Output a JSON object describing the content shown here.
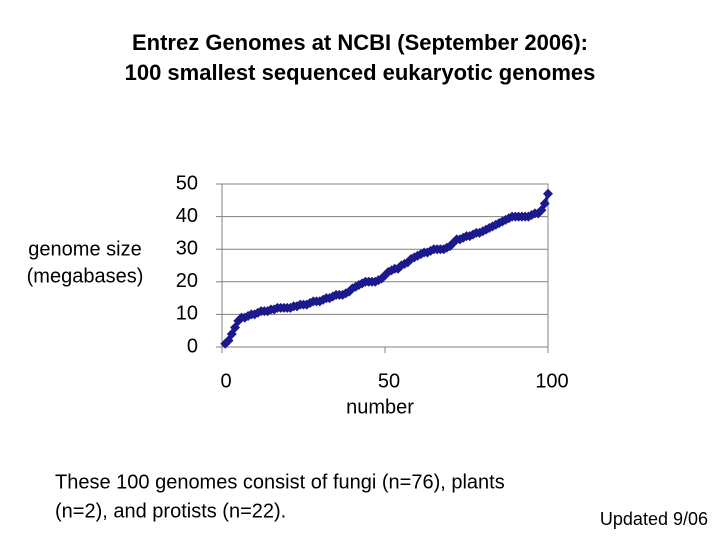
{
  "chart_data": {
    "type": "line",
    "title": [
      "Entrez Genomes at NCBI (September 2006):",
      "100 smallest sequenced eukaryotic genomes"
    ],
    "y_label": [
      "genome size",
      "(megabases)"
    ],
    "x_label": "number",
    "note": [
      "These 100 genomes consist of fungi (n=76), plants",
      "(n=2), and protists (n=22)."
    ],
    "footnote": "Updated 9/06",
    "xlim": [
      0,
      100
    ],
    "xticks": [
      0,
      50,
      100
    ],
    "ylim": [
      0,
      50
    ],
    "yticks": [
      0,
      10,
      20,
      30,
      40,
      50
    ],
    "grid": true,
    "color": "#1a1a8c",
    "x": [
      1,
      2,
      3,
      4,
      5,
      6,
      7,
      8,
      9,
      10,
      11,
      12,
      13,
      14,
      15,
      16,
      17,
      18,
      19,
      20,
      21,
      22,
      23,
      24,
      25,
      26,
      27,
      28,
      29,
      30,
      31,
      32,
      33,
      34,
      35,
      36,
      37,
      38,
      39,
      40,
      41,
      42,
      43,
      44,
      45,
      46,
      47,
      48,
      49,
      50,
      51,
      52,
      53,
      54,
      55,
      56,
      57,
      58,
      59,
      60,
      61,
      62,
      63,
      64,
      65,
      66,
      67,
      68,
      69,
      70,
      71,
      72,
      73,
      74,
      75,
      76,
      77,
      78,
      79,
      80,
      81,
      82,
      83,
      84,
      85,
      86,
      87,
      88,
      89,
      90,
      91,
      92,
      93,
      94,
      95,
      96,
      97,
      98,
      99,
      100
    ],
    "values": [
      1,
      2,
      4,
      6,
      8,
      9,
      9,
      9.5,
      10,
      10,
      10.5,
      11,
      11,
      11,
      11.5,
      11.5,
      12,
      12,
      12,
      12,
      12,
      12.5,
      12.5,
      13,
      13,
      13,
      13.5,
      14,
      14,
      14,
      14.5,
      15,
      15,
      15.5,
      16,
      16,
      16,
      16.5,
      17,
      18,
      18.5,
      19,
      19.5,
      20,
      20,
      20,
      20,
      20.5,
      21,
      22,
      23,
      23.5,
      24,
      24,
      25,
      25.5,
      26,
      27,
      27.5,
      28,
      28.5,
      29,
      29,
      29.5,
      30,
      30,
      30,
      30,
      30.5,
      31,
      32,
      33,
      33,
      33.5,
      34,
      34,
      34.5,
      35,
      35,
      35.5,
      36,
      36.5,
      37,
      37.5,
      38,
      38.5,
      39,
      39.5,
      40,
      40,
      40,
      40,
      40,
      40,
      40.5,
      41,
      41,
      42,
      44,
      47
    ]
  }
}
